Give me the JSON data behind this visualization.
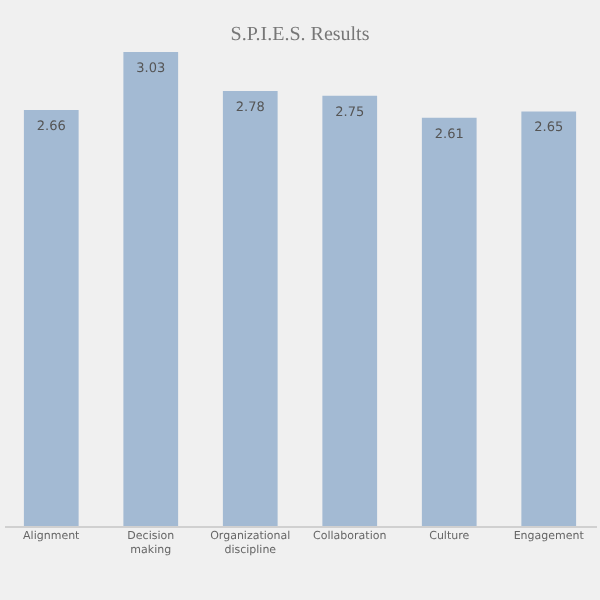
{
  "chart_data": {
    "type": "bar",
    "title": "S.P.I.E.S. Results",
    "categories": [
      "Alignment",
      "Decision making",
      "Organizational discipline",
      "Collaboration",
      "Culture",
      "Engagement"
    ],
    "values": [
      2.66,
      3.03,
      2.78,
      2.75,
      2.61,
      2.65
    ],
    "color": "#a3bad3",
    "data_labels": true
  }
}
